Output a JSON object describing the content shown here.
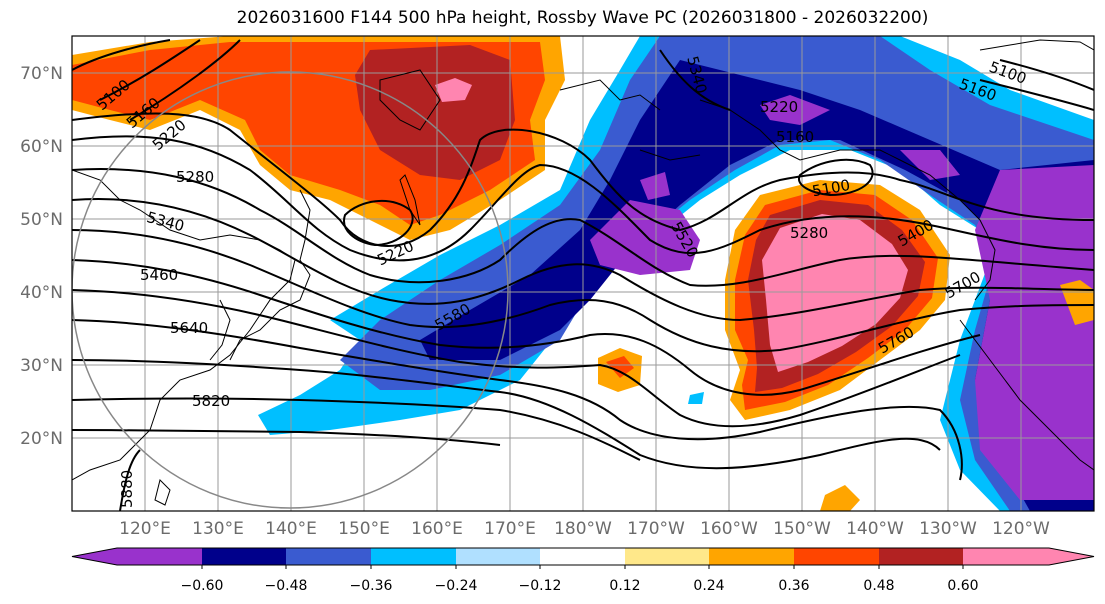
{
  "title": "2026031600 F144 500 hPa height, Rossby Wave PC (2026031800 - 2026032200)",
  "lat_labels": [
    "70°N",
    "60°N",
    "50°N",
    "40°N",
    "30°N",
    "20°N"
  ],
  "lon_labels": [
    "120°E",
    "130°E",
    "140°E",
    "150°E",
    "160°E",
    "170°E",
    "180°W",
    "170°W",
    "160°W",
    "150°W",
    "140°W",
    "130°W",
    "120°W"
  ],
  "contour_labels": [
    {
      "text": "5100"
    },
    {
      "text": "5160"
    },
    {
      "text": "5220"
    },
    {
      "text": "5280"
    },
    {
      "text": "5340"
    },
    {
      "text": "5460"
    },
    {
      "text": "5640"
    },
    {
      "text": "5820"
    },
    {
      "text": "5880"
    },
    {
      "text": "5220"
    },
    {
      "text": "5580"
    },
    {
      "text": "5340"
    },
    {
      "text": "5220"
    },
    {
      "text": "5160"
    },
    {
      "text": "5100"
    },
    {
      "text": "5280"
    },
    {
      "text": "5400"
    },
    {
      "text": "5520"
    },
    {
      "text": "5700"
    },
    {
      "text": "5760"
    },
    {
      "text": "5160"
    },
    {
      "text": "5100"
    }
  ],
  "colorbar": {
    "ticks": [
      "−0.60",
      "−0.48",
      "−0.36",
      "−0.24",
      "−0.12",
      "0.12",
      "0.24",
      "0.36",
      "0.48",
      "0.60"
    ],
    "colors": [
      "#9932cc",
      "#00008b",
      "#3a5bd0",
      "#00bfff",
      "#b0e0ff",
      "#ffffff",
      "#ffe88a",
      "#ffa500",
      "#ff4500",
      "#b22222",
      "#ff85b0"
    ]
  }
}
